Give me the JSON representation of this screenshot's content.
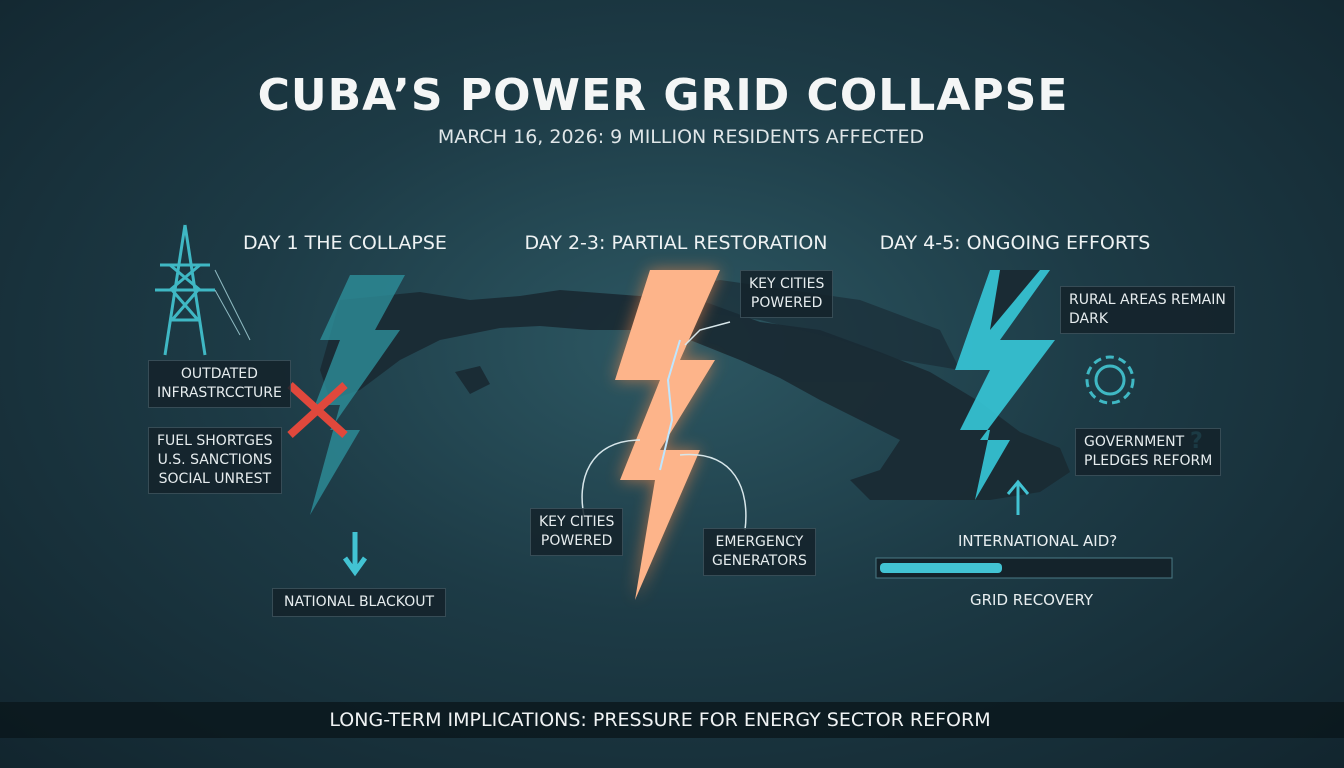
{
  "header": {
    "title": "CUBA’S POWER GRID COLLAPSE",
    "subtitle": "MARCH 16, 2026: 9 MILLION RESIDENTS AFFECTED"
  },
  "stages": [
    {
      "heading": "DAY 1 THE COLLAPSE",
      "causes": [
        [
          "OUTDATED",
          "INFRASTRCCTURE"
        ],
        [
          "FUEL SHORTGES",
          "U.S. SANCTIONS",
          "SOCIAL UNREST"
        ]
      ],
      "outcome": "NATIONAL BLACKOUT"
    },
    {
      "heading": "DAY 2-3: PARTIAL RESTORATION",
      "callouts": [
        [
          "KEY CITIES",
          "POWERED"
        ],
        [
          "KEY CITIES",
          "POWERED"
        ],
        [
          "EMERGENCY",
          "GENERATORS"
        ]
      ]
    },
    {
      "heading": "DAY 4-5: ONGOING EFFORTS",
      "callouts": [
        [
          "RURAL AREAS REMAIN",
          "DARK"
        ],
        [
          "GOVERNMENT",
          "PLEDGES REFORM"
        ]
      ],
      "aid": "INTERNATIONAL AID?",
      "progress_label": "GRID RECOVERY"
    }
  ],
  "footer": "LONG-TERM IMPLICATIONS: PRESSURE FOR ENERGY SECTOR REFORM"
}
